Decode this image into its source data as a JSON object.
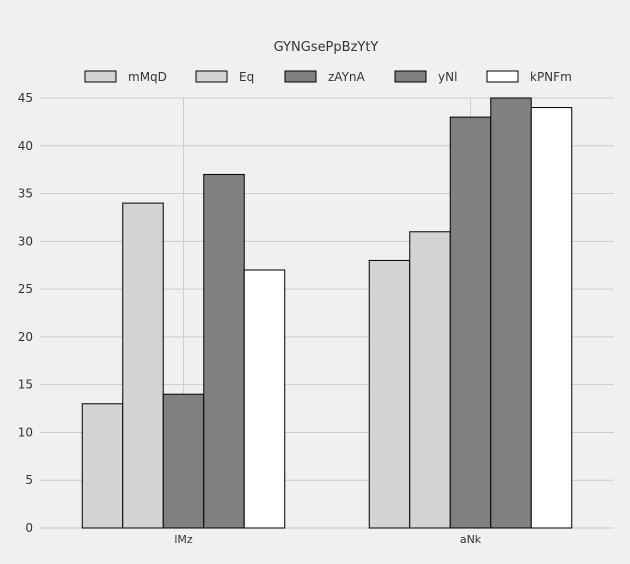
{
  "chart_data": {
    "type": "bar",
    "title": "GYNGsePpBzYtY",
    "xlabel": "",
    "ylabel": "",
    "categories": [
      "lMz",
      "aNk"
    ],
    "series": [
      {
        "name": "mMqD",
        "values": [
          13,
          28
        ],
        "color": "#d3d3d3"
      },
      {
        "name": "Eq",
        "values": [
          34,
          31
        ],
        "color": "#d3d3d3"
      },
      {
        "name": "zAYnA",
        "values": [
          14,
          43
        ],
        "color": "#808080"
      },
      {
        "name": "yNl",
        "values": [
          37,
          45
        ],
        "color": "#808080"
      },
      {
        "name": "kPNFm",
        "values": [
          27,
          44
        ],
        "color": "#ffffff"
      }
    ],
    "ylim": [
      0,
      45
    ],
    "yticks": [
      0,
      5,
      10,
      15,
      20,
      25,
      30,
      35,
      40,
      45
    ],
    "grid": true,
    "legend": "top"
  },
  "colors": {
    "background": "#f0f0f0",
    "grid": "#cccccc",
    "bar_stroke": "#000000",
    "text": "#333333"
  }
}
